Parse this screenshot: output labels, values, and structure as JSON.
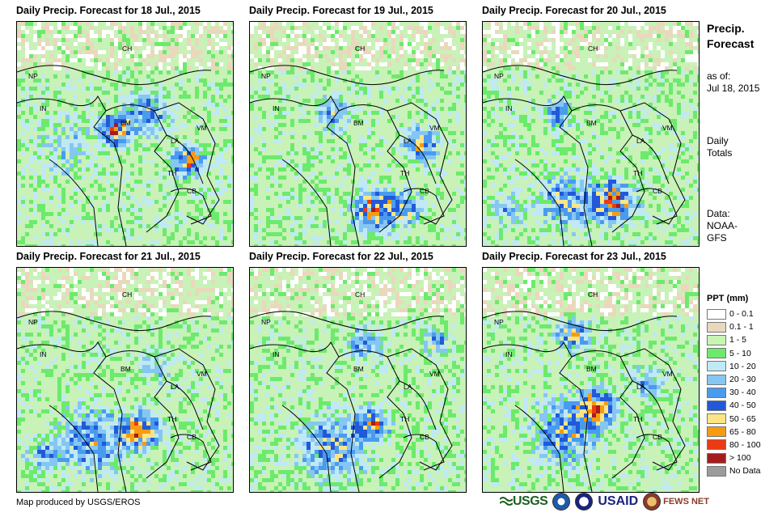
{
  "panels": [
    {
      "title": "Daily Precip. Forecast for 18 Jul., 2015"
    },
    {
      "title": "Daily Precip. Forecast for 19 Jul., 2015"
    },
    {
      "title": "Daily Precip. Forecast for 20 Jul., 2015"
    },
    {
      "title": "Daily Precip. Forecast for 21 Jul., 2015"
    },
    {
      "title": "Daily Precip. Forecast for 22 Jul., 2015"
    },
    {
      "title": "Daily Precip. Forecast for 23 Jul., 2015"
    }
  ],
  "country_labels": [
    "CH",
    "NP",
    "IN",
    "BM",
    "LA",
    "VM",
    "TH",
    "CB"
  ],
  "side": {
    "title_line1": "Precip.",
    "title_line2": "Forecast",
    "asof_line1": "as of:",
    "asof_line2": "Jul 18, 2015",
    "totals_line1": "Daily",
    "totals_line2": "Totals",
    "data_line1": "Data:",
    "data_line2": "NOAA-",
    "data_line3": "GFS"
  },
  "legend": {
    "title": "PPT (mm)",
    "items": [
      {
        "label": "0 - 0.1",
        "color": "#ffffff"
      },
      {
        "label": "0.1 - 1",
        "color": "#ead8bd"
      },
      {
        "label": "1 - 5",
        "color": "#c6f5b4"
      },
      {
        "label": "5 - 10",
        "color": "#6cea6c"
      },
      {
        "label": "10 - 20",
        "color": "#bfe9f5"
      },
      {
        "label": "20 - 30",
        "color": "#86c6f2"
      },
      {
        "label": "30 - 40",
        "color": "#4a9bee"
      },
      {
        "label": "40 - 50",
        "color": "#2159d8"
      },
      {
        "label": "50 - 65",
        "color": "#fde586"
      },
      {
        "label": "65 - 80",
        "color": "#f79b12"
      },
      {
        "label": "80 - 100",
        "color": "#ec3b12"
      },
      {
        "label": "> 100",
        "color": "#a31d1d"
      },
      {
        "label": "No Data",
        "color": "#9c9c9c"
      }
    ]
  },
  "credit": "Map produced by USGS/EROS",
  "logos": {
    "usgs": "USGS",
    "usaid": "USAID",
    "fews": "FEWS NET"
  }
}
